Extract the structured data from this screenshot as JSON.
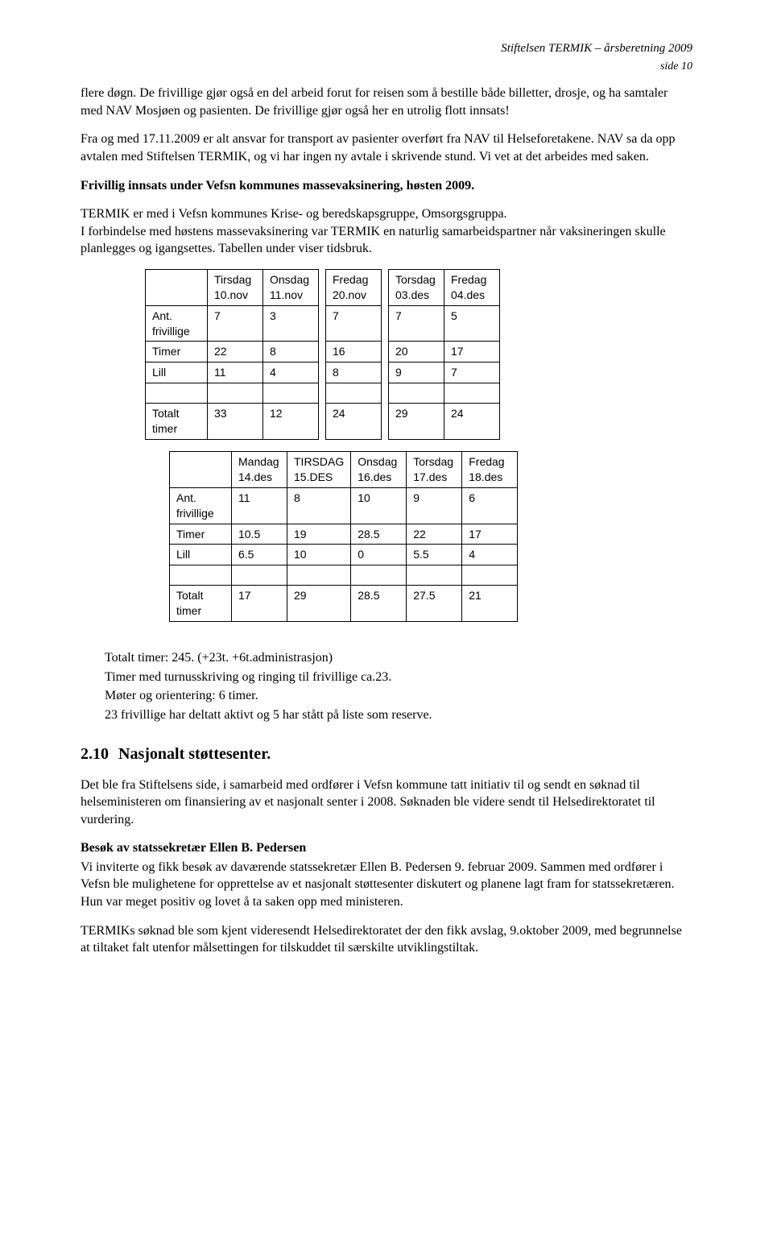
{
  "header": {
    "title": "Stiftelsen TERMIK – årsberetning 2009",
    "page": "side 10"
  },
  "para1": "flere døgn. De frivillige gjør også en del arbeid forut for reisen som å bestille både billetter, drosje, og ha samtaler med NAV Mosjøen og pasienten. De frivillige gjør også her en utrolig flott innsats!",
  "para2": "Fra og med 17.11.2009 er alt ansvar for transport av pasienter overført fra NAV til Helseforetakene. NAV sa da opp avtalen med Stiftelsen TERMIK, og vi har ingen ny avtale i skrivende stund. Vi vet at det arbeides med saken.",
  "sub1": "Frivillig innsats under Vefsn kommunes massevaksinering, høsten 2009.",
  "para3a": "TERMIK er med i Vefsn kommunes Krise- og beredskapsgruppe, Omsorgsgruppa.",
  "para3b": "I forbindelse med høstens massevaksinering var TERMIK en naturlig samarbeidspartner når vaksineringen skulle planlegges og igangsettes. Tabellen under viser tidsbruk.",
  "table1": {
    "cols": [
      "Tirsdag 10.nov",
      "Onsdag 11.nov",
      "Fredag 20.nov",
      "Torsdag 03.des",
      "Fredag 04.des"
    ],
    "rows": [
      {
        "label": "Ant. frivillige",
        "vals": [
          "7",
          "3",
          "7",
          "7",
          "5"
        ]
      },
      {
        "label": "Timer",
        "vals": [
          "22",
          "8",
          "16",
          "20",
          "17"
        ]
      },
      {
        "label": "Lill",
        "vals": [
          "11",
          "4",
          "8",
          "9",
          "7"
        ]
      }
    ],
    "total": {
      "label": "Totalt timer",
      "vals": [
        "33",
        "12",
        "24",
        "29",
        "24"
      ]
    }
  },
  "table2": {
    "cols": [
      "Mandag 14.des",
      "TIRSDAG 15.DES",
      "Onsdag 16.des",
      "Torsdag 17.des",
      "Fredag 18.des"
    ],
    "rows": [
      {
        "label": "Ant. frivillige",
        "vals": [
          "11",
          "8",
          "10",
          "9",
          "6"
        ]
      },
      {
        "label": "Timer",
        "vals": [
          "10.5",
          "19",
          "28.5",
          "22",
          "17"
        ]
      },
      {
        "label": "Lill",
        "vals": [
          "6.5",
          "10",
          "0",
          "5.5",
          "4"
        ]
      }
    ],
    "total": {
      "label": "Totalt timer",
      "vals": [
        "17",
        "29",
        "28.5",
        "27.5",
        "21"
      ]
    }
  },
  "summary": {
    "l1": "Totalt  timer:  245. (+23t. +6t.administrasjon)",
    "l2": "Timer med turnusskriving og ringing til frivillige ca.23.",
    "l3": "Møter og orientering: 6 timer.",
    "l4": " 23 frivillige har deltatt aktivt og 5 har stått på liste som reserve."
  },
  "section": {
    "num": "2.10",
    "title": "Nasjonalt støttesenter."
  },
  "para4": "Det ble fra Stiftelsens side, i samarbeid med ordfører i Vefsn kommune tatt initiativ til og sendt en søknad til helseministeren om finansiering av et nasjonalt senter i 2008. Søknaden ble videre sendt til Helsedirektoratet til vurdering.",
  "sub2": "Besøk av statssekretær Ellen B. Pedersen",
  "para5": "Vi inviterte og fikk besøk av daværende statssekretær Ellen B. Pedersen 9. februar 2009. Sammen med ordfører i Vefsn ble mulighetene for opprettelse av et nasjonalt støttesenter diskutert og planene lagt fram for statssekretæren. Hun var meget positiv og lovet å ta saken opp med ministeren.",
  "para6": "TERMIKs søknad ble som kjent videresendt Helsedirektoratet der den fikk avslag, 9.oktober 2009, med begrunnelse at tiltaket falt utenfor målsettingen for tilskuddet til særskilte utviklingstiltak."
}
